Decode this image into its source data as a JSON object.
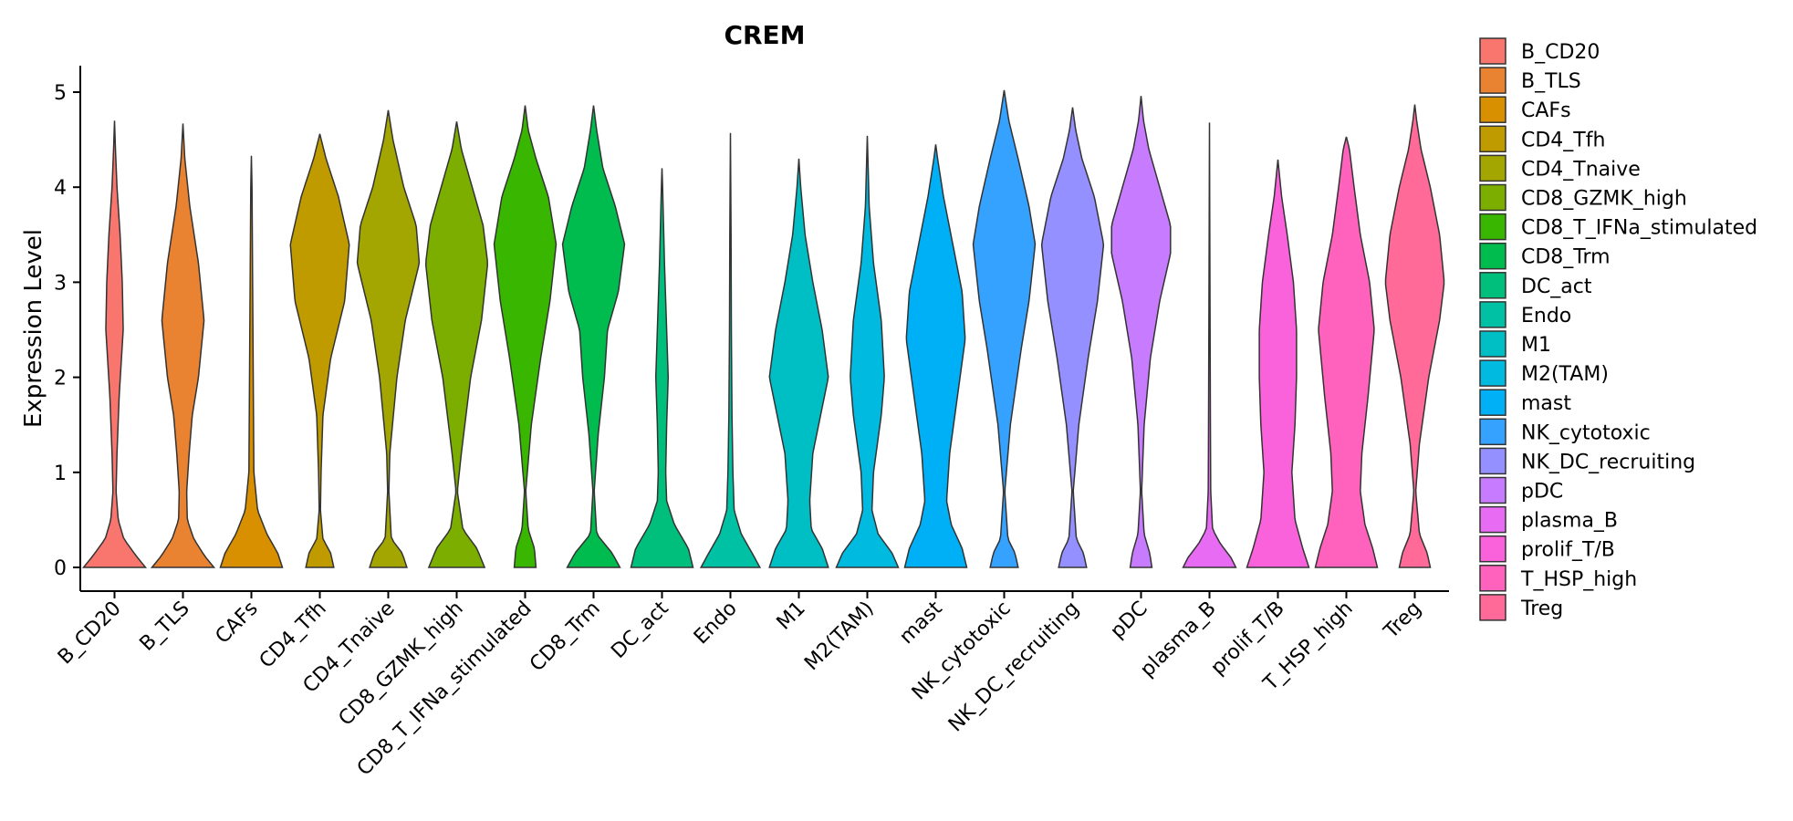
{
  "chart_data": {
    "type": "violin",
    "title": "CREM",
    "xlabel": "",
    "ylabel": "Expression Level",
    "ylim": [
      -0.25,
      5.3
    ],
    "yticks": [
      0,
      1,
      2,
      3,
      4,
      5
    ],
    "legend_position": "right",
    "categories": [
      "B_CD20",
      "B_TLS",
      "CAFs",
      "CD4_Tfh",
      "CD4_Tnaive",
      "CD8_GZMK_high",
      "CD8_T_IFNa_stimulated",
      "CD8_Trm",
      "DC_act",
      "Endo",
      "M1",
      "M2(TAM)",
      "mast",
      "NK_cytotoxic",
      "NK_DC_recruiting",
      "pDC",
      "plasma_B",
      "prolif_T/B",
      "T_HSP_high",
      "Treg"
    ],
    "colors": [
      "#F8766D",
      "#EA8331",
      "#D89000",
      "#C09B00",
      "#A3A500",
      "#7CAE00",
      "#39B600",
      "#00BB4E",
      "#00BF7D",
      "#00C1A3",
      "#00BFC4",
      "#00BAE0",
      "#00B0F6",
      "#35A2FF",
      "#9590FF",
      "#C77CFF",
      "#E76BF3",
      "#FA62DB",
      "#FF62BC",
      "#FF6A98"
    ],
    "max_values": [
      4.7,
      4.67,
      4.33,
      4.56,
      4.81,
      4.69,
      4.86,
      4.86,
      4.2,
      4.57,
      4.3,
      4.54,
      4.45,
      5.02,
      4.84,
      4.96,
      4.68,
      4.29,
      4.53,
      4.87
    ],
    "density_profiles": [
      [
        [
          0,
          1.0
        ],
        [
          0.12,
          0.7
        ],
        [
          0.3,
          0.3
        ],
        [
          0.5,
          0.12
        ],
        [
          0.8,
          0.05
        ],
        [
          1.2,
          0.08
        ],
        [
          1.8,
          0.15
        ],
        [
          2.5,
          0.28
        ],
        [
          3.0,
          0.25
        ],
        [
          3.5,
          0.18
        ],
        [
          4.0,
          0.08
        ],
        [
          4.4,
          0.03
        ],
        [
          4.7,
          0.0
        ]
      ],
      [
        [
          0,
          1.0
        ],
        [
          0.12,
          0.7
        ],
        [
          0.3,
          0.35
        ],
        [
          0.5,
          0.14
        ],
        [
          0.8,
          0.12
        ],
        [
          1.2,
          0.2
        ],
        [
          1.6,
          0.3
        ],
        [
          2.0,
          0.5
        ],
        [
          2.6,
          0.68
        ],
        [
          3.2,
          0.5
        ],
        [
          3.8,
          0.22
        ],
        [
          4.3,
          0.06
        ],
        [
          4.67,
          0.0
        ]
      ],
      [
        [
          0,
          1.0
        ],
        [
          0.15,
          0.85
        ],
        [
          0.35,
          0.5
        ],
        [
          0.6,
          0.2
        ],
        [
          1.0,
          0.08
        ],
        [
          2.0,
          0.06
        ],
        [
          3.0,
          0.04
        ],
        [
          4.0,
          0.02
        ],
        [
          4.33,
          0.0
        ]
      ],
      [
        [
          0,
          0.45
        ],
        [
          0.15,
          0.35
        ],
        [
          0.3,
          0.1
        ],
        [
          0.6,
          0.02
        ],
        [
          1.0,
          0.04
        ],
        [
          1.6,
          0.1
        ],
        [
          2.2,
          0.35
        ],
        [
          2.8,
          0.8
        ],
        [
          3.4,
          0.95
        ],
        [
          3.9,
          0.6
        ],
        [
          4.3,
          0.2
        ],
        [
          4.56,
          0.0
        ]
      ],
      [
        [
          0,
          0.6
        ],
        [
          0.15,
          0.45
        ],
        [
          0.3,
          0.1
        ],
        [
          0.8,
          0.02
        ],
        [
          1.2,
          0.05
        ],
        [
          2.0,
          0.28
        ],
        [
          2.6,
          0.55
        ],
        [
          3.2,
          1.0
        ],
        [
          3.6,
          0.9
        ],
        [
          4.0,
          0.5
        ],
        [
          4.5,
          0.15
        ],
        [
          4.81,
          0.0
        ]
      ],
      [
        [
          0,
          0.9
        ],
        [
          0.2,
          0.65
        ],
        [
          0.4,
          0.2
        ],
        [
          0.8,
          0.02
        ],
        [
          1.2,
          0.15
        ],
        [
          2.0,
          0.45
        ],
        [
          2.6,
          0.8
        ],
        [
          3.2,
          1.0
        ],
        [
          3.6,
          0.85
        ],
        [
          4.0,
          0.5
        ],
        [
          4.4,
          0.15
        ],
        [
          4.69,
          0.0
        ]
      ],
      [
        [
          0,
          0.35
        ],
        [
          0.2,
          0.3
        ],
        [
          0.4,
          0.1
        ],
        [
          0.8,
          0.02
        ],
        [
          1.5,
          0.2
        ],
        [
          2.2,
          0.5
        ],
        [
          2.8,
          0.8
        ],
        [
          3.4,
          1.0
        ],
        [
          3.9,
          0.75
        ],
        [
          4.3,
          0.35
        ],
        [
          4.6,
          0.1
        ],
        [
          4.86,
          0.0
        ]
      ],
      [
        [
          0,
          0.85
        ],
        [
          0.15,
          0.6
        ],
        [
          0.35,
          0.1
        ],
        [
          0.8,
          0.02
        ],
        [
          1.4,
          0.15
        ],
        [
          2.0,
          0.35
        ],
        [
          2.5,
          0.45
        ],
        [
          2.9,
          0.8
        ],
        [
          3.4,
          1.0
        ],
        [
          3.8,
          0.7
        ],
        [
          4.2,
          0.3
        ],
        [
          4.6,
          0.1
        ],
        [
          4.86,
          0.0
        ]
      ],
      [
        [
          0,
          1.0
        ],
        [
          0.2,
          0.85
        ],
        [
          0.45,
          0.4
        ],
        [
          0.7,
          0.15
        ],
        [
          1.0,
          0.12
        ],
        [
          1.5,
          0.15
        ],
        [
          2.0,
          0.2
        ],
        [
          2.5,
          0.15
        ],
        [
          3.2,
          0.08
        ],
        [
          4.0,
          0.02
        ],
        [
          4.2,
          0.0
        ]
      ],
      [
        [
          0,
          0.95
        ],
        [
          0.15,
          0.7
        ],
        [
          0.35,
          0.35
        ],
        [
          0.6,
          0.12
        ],
        [
          1.0,
          0.08
        ],
        [
          1.6,
          0.05
        ],
        [
          2.5,
          0.03
        ],
        [
          3.5,
          0.02
        ],
        [
          4.57,
          0.0
        ]
      ],
      [
        [
          0,
          0.95
        ],
        [
          0.2,
          0.75
        ],
        [
          0.4,
          0.4
        ],
        [
          0.7,
          0.35
        ],
        [
          1.2,
          0.45
        ],
        [
          1.6,
          0.7
        ],
        [
          2.0,
          0.95
        ],
        [
          2.5,
          0.75
        ],
        [
          3.0,
          0.45
        ],
        [
          3.5,
          0.2
        ],
        [
          4.0,
          0.06
        ],
        [
          4.3,
          0.0
        ]
      ],
      [
        [
          0,
          1.0
        ],
        [
          0.15,
          0.8
        ],
        [
          0.35,
          0.35
        ],
        [
          0.6,
          0.15
        ],
        [
          1.0,
          0.2
        ],
        [
          1.6,
          0.45
        ],
        [
          2.0,
          0.55
        ],
        [
          2.6,
          0.45
        ],
        [
          3.2,
          0.2
        ],
        [
          3.8,
          0.06
        ],
        [
          4.3,
          0.02
        ],
        [
          4.54,
          0.0
        ]
      ],
      [
        [
          0,
          1.0
        ],
        [
          0.2,
          0.85
        ],
        [
          0.45,
          0.5
        ],
        [
          0.7,
          0.35
        ],
        [
          1.2,
          0.45
        ],
        [
          1.8,
          0.7
        ],
        [
          2.4,
          0.95
        ],
        [
          2.9,
          0.85
        ],
        [
          3.4,
          0.55
        ],
        [
          3.9,
          0.25
        ],
        [
          4.3,
          0.06
        ],
        [
          4.45,
          0.0
        ]
      ],
      [
        [
          0,
          0.45
        ],
        [
          0.15,
          0.35
        ],
        [
          0.3,
          0.12
        ],
        [
          0.8,
          0.02
        ],
        [
          1.5,
          0.2
        ],
        [
          2.3,
          0.55
        ],
        [
          2.8,
          0.8
        ],
        [
          3.4,
          1.0
        ],
        [
          3.8,
          0.8
        ],
        [
          4.3,
          0.45
        ],
        [
          4.7,
          0.15
        ],
        [
          5.02,
          0.0
        ]
      ],
      [
        [
          0,
          0.45
        ],
        [
          0.15,
          0.35
        ],
        [
          0.3,
          0.12
        ],
        [
          0.8,
          0.02
        ],
        [
          1.5,
          0.2
        ],
        [
          2.2,
          0.5
        ],
        [
          2.8,
          0.8
        ],
        [
          3.4,
          1.0
        ],
        [
          3.9,
          0.7
        ],
        [
          4.3,
          0.3
        ],
        [
          4.6,
          0.1
        ],
        [
          4.84,
          0.0
        ]
      ],
      [
        [
          0,
          0.35
        ],
        [
          0.15,
          0.28
        ],
        [
          0.35,
          0.1
        ],
        [
          0.8,
          0.02
        ],
        [
          1.5,
          0.1
        ],
        [
          2.2,
          0.3
        ],
        [
          2.8,
          0.6
        ],
        [
          3.3,
          0.95
        ],
        [
          3.6,
          0.95
        ],
        [
          4.0,
          0.6
        ],
        [
          4.4,
          0.25
        ],
        [
          4.7,
          0.08
        ],
        [
          4.96,
          0.0
        ]
      ],
      [
        [
          0,
          0.85
        ],
        [
          0.1,
          0.7
        ],
        [
          0.25,
          0.35
        ],
        [
          0.4,
          0.1
        ],
        [
          0.8,
          0.04
        ],
        [
          1.5,
          0.03
        ],
        [
          2.5,
          0.02
        ],
        [
          3.5,
          0.01
        ],
        [
          4.68,
          0.0
        ]
      ],
      [
        [
          0,
          1.0
        ],
        [
          0.2,
          0.8
        ],
        [
          0.5,
          0.55
        ],
        [
          1.0,
          0.45
        ],
        [
          1.5,
          0.55
        ],
        [
          2.0,
          0.6
        ],
        [
          2.5,
          0.6
        ],
        [
          3.0,
          0.5
        ],
        [
          3.5,
          0.3
        ],
        [
          3.9,
          0.12
        ],
        [
          4.29,
          0.0
        ]
      ],
      [
        [
          0,
          1.0
        ],
        [
          0.2,
          0.85
        ],
        [
          0.45,
          0.6
        ],
        [
          0.8,
          0.45
        ],
        [
          1.2,
          0.5
        ],
        [
          1.8,
          0.7
        ],
        [
          2.5,
          0.9
        ],
        [
          3.0,
          0.75
        ],
        [
          3.5,
          0.45
        ],
        [
          4.0,
          0.25
        ],
        [
          4.4,
          0.1
        ],
        [
          4.53,
          0.0
        ]
      ],
      [
        [
          0,
          0.5
        ],
        [
          0.15,
          0.4
        ],
        [
          0.35,
          0.15
        ],
        [
          0.8,
          0.03
        ],
        [
          1.3,
          0.15
        ],
        [
          2.0,
          0.45
        ],
        [
          2.6,
          0.8
        ],
        [
          3.0,
          0.95
        ],
        [
          3.5,
          0.8
        ],
        [
          4.0,
          0.5
        ],
        [
          4.4,
          0.2
        ],
        [
          4.7,
          0.06
        ],
        [
          4.87,
          0.0
        ]
      ]
    ]
  }
}
